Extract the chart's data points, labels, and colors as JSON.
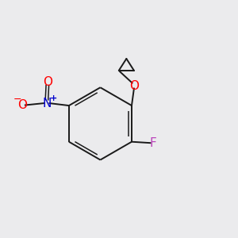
{
  "bg_color": "#ebebed",
  "bond_color": "#1a1a1a",
  "atom_colors": {
    "O": "#ff0000",
    "N": "#0000cc",
    "F": "#bb44bb",
    "O_minus": "#ff0000"
  },
  "font_size_atoms": 11,
  "font_size_charges": 8
}
